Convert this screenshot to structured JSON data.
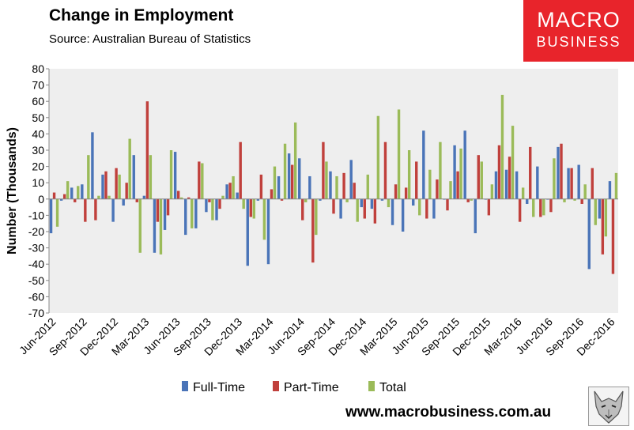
{
  "header": {
    "title": "Change in Employment",
    "subtitle": "Source: Australian Bureau of Statistics"
  },
  "logo": {
    "line1": "MACRO",
    "line2": "BUSINESS",
    "color": "#e8242b"
  },
  "footer": {
    "url": "www.macrobusiness.com.au",
    "badge_icon": "wolf-icon"
  },
  "chart_data": {
    "type": "bar",
    "title": "Change in Employment",
    "xlabel": "",
    "ylabel": "Number (Thousands)",
    "ylim": [
      -70,
      80
    ],
    "yticks": [
      -70,
      -60,
      -50,
      -40,
      -30,
      -20,
      -10,
      0,
      10,
      20,
      30,
      40,
      50,
      60,
      70,
      80
    ],
    "grid": false,
    "legend_position": "bottom",
    "categories": [
      "Jun-2012",
      "Jul-2012",
      "Aug-2012",
      "Sep-2012",
      "Oct-2012",
      "Nov-2012",
      "Dec-2012",
      "Jan-2013",
      "Feb-2013",
      "Mar-2013",
      "Apr-2013",
      "May-2013",
      "Jun-2013",
      "Jul-2013",
      "Aug-2013",
      "Sep-2013",
      "Oct-2013",
      "Nov-2013",
      "Dec-2013",
      "Jan-2014",
      "Feb-2014",
      "Mar-2014",
      "Apr-2014",
      "May-2014",
      "Jun-2014",
      "Jul-2014",
      "Aug-2014",
      "Sep-2014",
      "Oct-2014",
      "Nov-2014",
      "Dec-2014",
      "Jan-2015",
      "Feb-2015",
      "Mar-2015",
      "Apr-2015",
      "May-2015",
      "Jun-2015",
      "Jul-2015",
      "Aug-2015",
      "Sep-2015",
      "Oct-2015",
      "Nov-2015",
      "Dec-2015",
      "Jan-2016",
      "Feb-2016",
      "Mar-2016",
      "Apr-2016",
      "May-2016",
      "Jun-2016",
      "Jul-2016",
      "Aug-2016",
      "Sep-2016",
      "Oct-2016",
      "Nov-2016",
      "Dec-2016"
    ],
    "xtick_labels": [
      "Jun-2012",
      "Sep-2012",
      "Dec-2012",
      "Mar-2013",
      "Jun-2013",
      "Sep-2013",
      "Dec-2013",
      "Mar-2014",
      "Jun-2014",
      "Sep-2014",
      "Dec-2014",
      "Mar-2015",
      "Jun-2015",
      "Sep-2015",
      "Dec-2015",
      "Mar-2016",
      "Jun-2016",
      "Sep-2016",
      "Dec-2016"
    ],
    "series": [
      {
        "name": "Full-Time",
        "color": "#4a74b8",
        "values": [
          -21,
          -1,
          7,
          9,
          41,
          15,
          -14,
          -4,
          27,
          2,
          -33,
          -19,
          29,
          -22,
          -18,
          -8,
          -13,
          9,
          4,
          -41,
          -1,
          -40,
          14,
          28,
          25,
          14,
          -1,
          17,
          -12,
          24,
          -5,
          -6,
          -1,
          -16,
          -20,
          -4,
          42,
          -12,
          0,
          33,
          42,
          -21,
          0,
          17,
          18,
          17,
          -3,
          20,
          0,
          32,
          19,
          21,
          -43,
          -12,
          11
        ]
      },
      {
        "name": "Part-Time",
        "color": "#c0403c",
        "values": [
          4,
          3,
          -2,
          -14,
          -13,
          17,
          19,
          10,
          -2,
          60,
          -14,
          -10,
          5,
          1,
          23,
          -2,
          -6,
          10,
          35,
          -11,
          15,
          6,
          -1,
          21,
          -13,
          -39,
          35,
          -9,
          16,
          10,
          -12,
          -15,
          35,
          9,
          7,
          23,
          -12,
          12,
          -7,
          17,
          -2,
          27,
          -10,
          33,
          26,
          -14,
          32,
          -11,
          -8,
          34,
          19,
          -3,
          19,
          -34,
          -46
        ]
      },
      {
        "name": "Total",
        "color": "#9bbb59",
        "values": [
          -17,
          11,
          8,
          27,
          2,
          2,
          15,
          37,
          -33,
          27,
          -34,
          30,
          1,
          -18,
          22,
          -13,
          2,
          14,
          -6,
          -12,
          -25,
          20,
          34,
          47,
          -2,
          -22,
          23,
          14,
          -2,
          -14,
          15,
          51,
          -5,
          55,
          30,
          -10,
          18,
          35,
          11,
          31,
          -1,
          23,
          9,
          64,
          45,
          7,
          -11,
          -10,
          25,
          -2,
          -1,
          9,
          -16,
          -23,
          16
        ]
      }
    ]
  }
}
